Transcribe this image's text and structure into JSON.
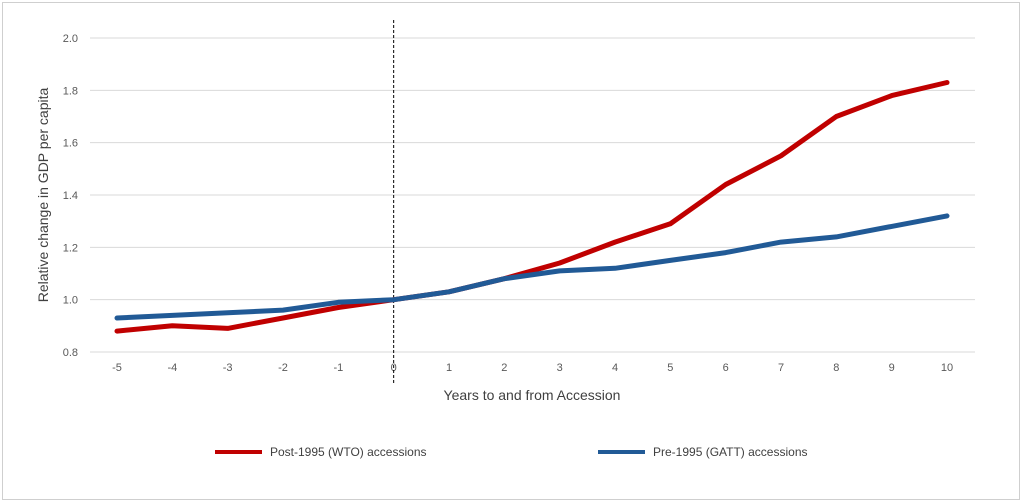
{
  "chart_data": {
    "type": "line",
    "title": "",
    "xlabel": "Years to and from Accession",
    "ylabel": "Relative change in GDP per capita",
    "x": [
      -5,
      -4,
      -3,
      -2,
      -1,
      0,
      1,
      2,
      3,
      4,
      5,
      6,
      7,
      8,
      9,
      10
    ],
    "x_tick_labels": [
      "-5",
      "-4",
      "-3",
      "-2",
      "-1",
      "0",
      "1",
      "2",
      "3",
      "4",
      "5",
      "6",
      "7",
      "8",
      "9",
      "10"
    ],
    "y_tick_values": [
      0.8,
      1.0,
      1.2,
      1.4,
      1.6,
      1.8,
      2.0
    ],
    "y_tick_labels": [
      "0.8",
      "1.0",
      "1.2",
      "1.4",
      "1.6",
      "1.8",
      "2.0"
    ],
    "ylim": [
      0.8,
      2.0
    ],
    "grid": true,
    "legend_position": "bottom",
    "reference_line": {
      "x": 0,
      "style": "dashed",
      "color": "#000000"
    },
    "series": [
      {
        "name": "Post-1995 (WTO) accessions",
        "color": "#C00000",
        "values": [
          0.88,
          0.9,
          0.89,
          0.93,
          0.97,
          1.0,
          1.03,
          1.08,
          1.14,
          1.22,
          1.29,
          1.44,
          1.55,
          1.7,
          1.78,
          1.83
        ]
      },
      {
        "name": "Pre-1995 (GATT) accessions",
        "color": "#215A96",
        "values": [
          0.93,
          0.94,
          0.95,
          0.96,
          0.99,
          1.0,
          1.03,
          1.08,
          1.11,
          1.12,
          1.15,
          1.18,
          1.22,
          1.24,
          1.28,
          1.32
        ]
      }
    ]
  }
}
